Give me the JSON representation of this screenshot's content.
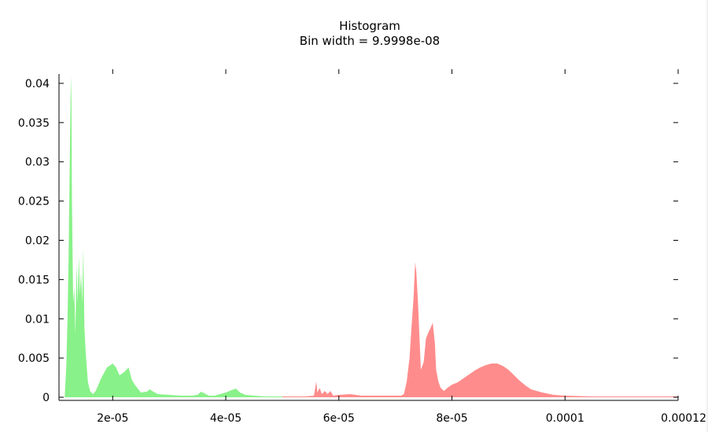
{
  "chart_data": {
    "type": "area",
    "title": "Histogram",
    "subtitle": "Bin width = 9.9998e-08",
    "xlabel": "",
    "ylabel": "",
    "xlim": [
      1.05e-05,
      0.00012
    ],
    "ylim": [
      -0.0004,
      0.0412
    ],
    "x_ticks": [
      2e-05,
      4e-05,
      6e-05,
      8e-05,
      0.0001,
      0.00012
    ],
    "x_tick_labels": [
      "2e-05",
      "4e-05",
      "6e-05",
      "8e-05",
      "0.0001",
      "0.00012"
    ],
    "y_ticks": [
      0,
      0.005,
      0.01,
      0.015,
      0.02,
      0.025,
      0.03,
      0.035,
      0.04
    ],
    "y_tick_labels": [
      "0",
      "0.005",
      "0.01",
      "0.015",
      "0.02",
      "0.025",
      "0.03",
      "0.035",
      "0.04"
    ],
    "grid": false,
    "legend": "none",
    "series": [
      {
        "color": "#7cf07c",
        "x": [
          1.15e-05,
          1.18e-05,
          1.2e-05,
          1.22e-05,
          1.24e-05,
          1.26e-05,
          1.27e-05,
          1.28e-05,
          1.3e-05,
          1.32e-05,
          1.34e-05,
          1.36e-05,
          1.38e-05,
          1.4e-05,
          1.42e-05,
          1.44e-05,
          1.46e-05,
          1.48e-05,
          1.5e-05,
          1.52e-05,
          1.54e-05,
          1.56e-05,
          1.6e-05,
          1.65e-05,
          1.7e-05,
          1.8e-05,
          1.9e-05,
          2e-05,
          2.06e-05,
          2.12e-05,
          2.2e-05,
          2.28e-05,
          2.34e-05,
          2.4e-05,
          2.5e-05,
          2.6e-05,
          2.66e-05,
          2.72e-05,
          2.8e-05,
          3e-05,
          3.2e-05,
          3.4e-05,
          3.5e-05,
          3.56e-05,
          3.62e-05,
          3.7e-05,
          3.8e-05,
          3.9e-05,
          4e-05,
          4.1e-05,
          4.18e-05,
          4.25e-05,
          4.35e-05,
          4.5e-05,
          4.7e-05,
          5e-05,
          5.5e-05,
          6e-05,
          6.5e-05
        ],
        "y": [
          0.0,
          0.004,
          0.01,
          0.018,
          0.03,
          0.041,
          0.038,
          0.025,
          0.012,
          0.014,
          0.008,
          0.017,
          0.012,
          0.018,
          0.013,
          0.016,
          0.012,
          0.019,
          0.009,
          0.006,
          0.004,
          0.002,
          0.0008,
          0.0004,
          0.0008,
          0.0025,
          0.0038,
          0.0043,
          0.0038,
          0.0028,
          0.0032,
          0.0038,
          0.0022,
          0.0015,
          0.0006,
          0.0007,
          0.001,
          0.0007,
          0.0004,
          0.0003,
          0.0002,
          0.0002,
          0.0003,
          0.0007,
          0.0005,
          0.0002,
          0.0002,
          0.0004,
          0.0006,
          0.0009,
          0.0011,
          0.0006,
          0.0003,
          0.0002,
          0.0001,
          0.0001,
          5e-05,
          0.0,
          0.0
        ]
      },
      {
        "color": "#ff8080",
        "x": [
          5e-05,
          5.4e-05,
          5.56e-05,
          5.6e-05,
          5.62e-05,
          5.66e-05,
          5.7e-05,
          5.75e-05,
          5.8e-05,
          5.85e-05,
          5.9e-05,
          6e-05,
          6.2e-05,
          6.4e-05,
          6.6e-05,
          6.8e-05,
          7e-05,
          7.1e-05,
          7.15e-05,
          7.2e-05,
          7.25e-05,
          7.28e-05,
          7.32e-05,
          7.35e-05,
          7.37e-05,
          7.4e-05,
          7.45e-05,
          7.5e-05,
          7.54e-05,
          7.58e-05,
          7.62e-05,
          7.66e-05,
          7.7e-05,
          7.72e-05,
          7.76e-05,
          7.8e-05,
          7.86e-05,
          7.92e-05,
          8e-05,
          8.1e-05,
          8.2e-05,
          8.3e-05,
          8.4e-05,
          8.5e-05,
          8.6e-05,
          8.7e-05,
          8.8e-05,
          8.9e-05,
          9e-05,
          9.1e-05,
          9.2e-05,
          9.3e-05,
          9.4e-05,
          9.6e-05,
          9.8e-05,
          0.0001,
          0.000105,
          0.00011,
          0.000115,
          0.00012
        ],
        "y": [
          0.0001,
          0.0001,
          0.0002,
          0.002,
          0.0006,
          0.0012,
          0.0004,
          0.0008,
          0.0004,
          0.0008,
          0.0002,
          0.0003,
          0.0004,
          0.0002,
          0.0002,
          0.0002,
          0.0002,
          0.0002,
          0.0004,
          0.002,
          0.005,
          0.0085,
          0.0125,
          0.0172,
          0.016,
          0.012,
          0.0035,
          0.0045,
          0.0075,
          0.0082,
          0.0088,
          0.0095,
          0.0068,
          0.0035,
          0.002,
          0.0012,
          0.0008,
          0.0012,
          0.0016,
          0.0019,
          0.0024,
          0.0029,
          0.0034,
          0.0038,
          0.0041,
          0.0043,
          0.0043,
          0.004,
          0.0035,
          0.0028,
          0.0021,
          0.0015,
          0.001,
          0.0006,
          0.0003,
          0.0002,
          0.0001,
          0.0001,
          0.0001,
          0.0001
        ]
      }
    ]
  }
}
